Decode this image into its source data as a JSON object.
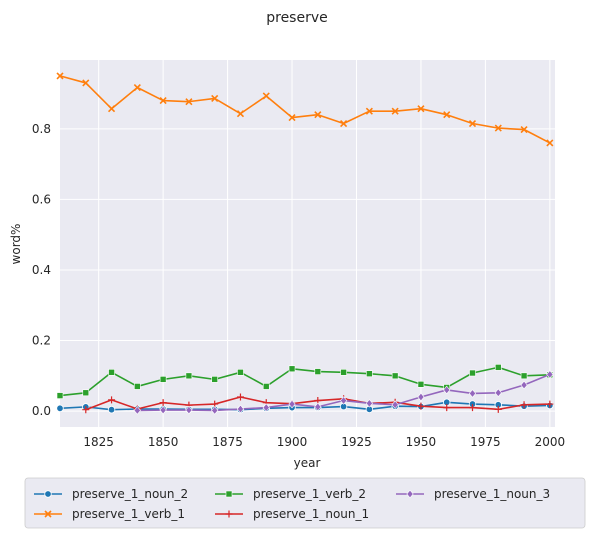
{
  "chart_data": {
    "type": "line",
    "title": "preserve",
    "xlabel": "year",
    "ylabel": "word%",
    "xlim": [
      1810,
      2002
    ],
    "ylim": [
      -0.045,
      0.995
    ],
    "xticks": [
      1825,
      1850,
      1875,
      1900,
      1925,
      1950,
      1975,
      2000
    ],
    "yticks": [
      0.0,
      0.2,
      0.4,
      0.6,
      0.8
    ],
    "grid": true,
    "legend_position": "bottom",
    "x": [
      1810,
      1820,
      1830,
      1840,
      1850,
      1860,
      1870,
      1880,
      1890,
      1900,
      1910,
      1920,
      1930,
      1940,
      1950,
      1960,
      1970,
      1980,
      1990,
      2000
    ],
    "series": [
      {
        "name": "preserve_1_noun_2",
        "color": "#1f77b4",
        "marker": "circle",
        "values": [
          0.008,
          0.012,
          0.004,
          0.006,
          0.006,
          0.005,
          0.005,
          0.004,
          0.008,
          0.01,
          0.01,
          0.013,
          0.005,
          0.014,
          0.013,
          0.025,
          0.02,
          0.018,
          0.014,
          0.016
        ]
      },
      {
        "name": "preserve_1_verb_1",
        "color": "#ff7f0e",
        "marker": "x",
        "values": [
          0.95,
          0.93,
          0.857,
          0.917,
          0.88,
          0.877,
          0.886,
          0.843,
          0.893,
          0.832,
          0.84,
          0.815,
          0.85,
          0.85,
          0.857,
          0.84,
          0.815,
          0.802,
          0.798,
          0.76
        ]
      },
      {
        "name": "preserve_1_verb_2",
        "color": "#2ca02c",
        "marker": "square",
        "values": [
          0.044,
          0.052,
          0.11,
          0.07,
          0.09,
          0.1,
          0.09,
          0.11,
          0.07,
          0.12,
          0.112,
          0.11,
          0.106,
          0.1,
          0.076,
          0.067,
          0.108,
          0.124,
          0.1,
          0.103
        ]
      },
      {
        "name": "preserve_1_noun_1",
        "color": "#d62728",
        "marker": "plus",
        "values": [
          null,
          0.004,
          0.032,
          0.006,
          0.024,
          0.017,
          0.02,
          0.04,
          0.024,
          0.021,
          0.03,
          0.035,
          0.022,
          0.025,
          0.014,
          0.01,
          0.01,
          0.005,
          0.018,
          0.02
        ]
      },
      {
        "name": "preserve_1_noun_3",
        "color": "#9467bd",
        "marker": "diamond",
        "values": [
          null,
          null,
          null,
          0.002,
          0.003,
          0.003,
          0.002,
          0.006,
          0.01,
          0.02,
          0.012,
          0.03,
          0.022,
          0.018,
          0.04,
          0.06,
          0.05,
          0.052,
          0.074,
          0.104
        ]
      }
    ]
  }
}
